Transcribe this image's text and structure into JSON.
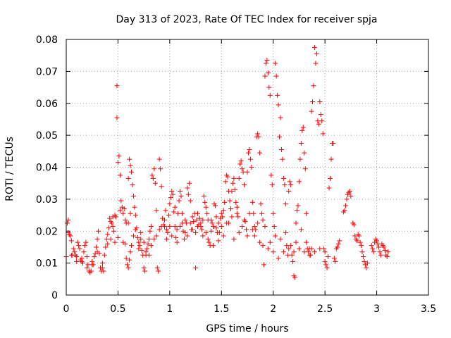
{
  "chart_data": {
    "type": "scatter",
    "title": "Day 313 of 2023, Rate Of TEC Index for receiver spja",
    "xlabel": "GPS time / hours",
    "ylabel": "ROTI / TECUs",
    "xlim": [
      0,
      3.5
    ],
    "ylim": [
      0,
      0.08
    ],
    "xticks": [
      0,
      0.5,
      1,
      1.5,
      2,
      2.5,
      3,
      3.5
    ],
    "xtick_labels": [
      "0",
      "0.5",
      "1",
      "1.5",
      "2",
      "2.5",
      "3",
      "3.5"
    ],
    "yticks": [
      0,
      0.01,
      0.02,
      0.03,
      0.04,
      0.05,
      0.06,
      0.07,
      0.08
    ],
    "ytick_labels": [
      "0",
      "0.01",
      "0.02",
      "0.03",
      "0.04",
      "0.05",
      "0.06",
      "0.07",
      "0.08"
    ],
    "grid": true,
    "marker": "plus",
    "series_color": "#ff0000",
    "points": [
      [
        0.0,
        0.012
      ],
      [
        0.01,
        0.0225
      ],
      [
        0.02,
        0.0235
      ],
      [
        0.02,
        0.0195
      ],
      [
        0.03,
        0.019
      ],
      [
        0.04,
        0.0185
      ],
      [
        0.05,
        0.017
      ],
      [
        0.06,
        0.0125
      ],
      [
        0.07,
        0.0145
      ],
      [
        0.08,
        0.0135
      ],
      [
        0.09,
        0.0125
      ],
      [
        0.1,
        0.012
      ],
      [
        0.11,
        0.0165
      ],
      [
        0.12,
        0.0155
      ],
      [
        0.13,
        0.0145
      ],
      [
        0.14,
        0.011
      ],
      [
        0.15,
        0.0105
      ],
      [
        0.16,
        0.01
      ],
      [
        0.17,
        0.0135
      ],
      [
        0.18,
        0.0155
      ],
      [
        0.19,
        0.0165
      ],
      [
        0.2,
        0.012
      ],
      [
        0.21,
        0.0095
      ],
      [
        0.22,
        0.0075
      ],
      [
        0.23,
        0.007
      ],
      [
        0.24,
        0.0075
      ],
      [
        0.25,
        0.0105
      ],
      [
        0.26,
        0.0095
      ],
      [
        0.27,
        0.012
      ],
      [
        0.28,
        0.013
      ],
      [
        0.29,
        0.015
      ],
      [
        0.3,
        0.0175
      ],
      [
        0.31,
        0.02
      ],
      [
        0.32,
        0.013
      ],
      [
        0.33,
        0.0085
      ],
      [
        0.34,
        0.0075
      ],
      [
        0.35,
        0.0085
      ],
      [
        0.36,
        0.0075
      ],
      [
        0.37,
        0.0125
      ],
      [
        0.38,
        0.015
      ],
      [
        0.39,
        0.0175
      ],
      [
        0.4,
        0.019
      ],
      [
        0.41,
        0.021
      ],
      [
        0.42,
        0.024
      ],
      [
        0.43,
        0.023
      ],
      [
        0.44,
        0.0225
      ],
      [
        0.45,
        0.0215
      ],
      [
        0.46,
        0.02
      ],
      [
        0.47,
        0.025
      ],
      [
        0.48,
        0.0245
      ],
      [
        0.49,
        0.0655
      ],
      [
        0.49,
        0.0555
      ],
      [
        0.5,
        0.0415
      ],
      [
        0.51,
        0.0435
      ],
      [
        0.52,
        0.0375
      ],
      [
        0.53,
        0.0295
      ],
      [
        0.54,
        0.0275
      ],
      [
        0.55,
        0.0255
      ],
      [
        0.56,
        0.027
      ],
      [
        0.57,
        0.016
      ],
      [
        0.58,
        0.0115
      ],
      [
        0.59,
        0.0095
      ],
      [
        0.6,
        0.0085
      ],
      [
        0.61,
        0.011
      ],
      [
        0.62,
        0.0135
      ],
      [
        0.63,
        0.0155
      ],
      [
        0.58,
        0.0225
      ],
      [
        0.6,
        0.0365
      ],
      [
        0.61,
        0.0425
      ],
      [
        0.62,
        0.0405
      ],
      [
        0.63,
        0.0385
      ],
      [
        0.64,
        0.0345
      ],
      [
        0.65,
        0.031
      ],
      [
        0.66,
        0.0275
      ],
      [
        0.67,
        0.025
      ],
      [
        0.68,
        0.021
      ],
      [
        0.69,
        0.018
      ],
      [
        0.7,
        0.0165
      ],
      [
        0.71,
        0.0155
      ],
      [
        0.72,
        0.0175
      ],
      [
        0.73,
        0.014
      ],
      [
        0.74,
        0.0125
      ],
      [
        0.75,
        0.0085
      ],
      [
        0.76,
        0.0075
      ],
      [
        0.77,
        0.0135
      ],
      [
        0.78,
        0.0145
      ],
      [
        0.79,
        0.016
      ],
      [
        0.8,
        0.0175
      ],
      [
        0.81,
        0.02
      ],
      [
        0.82,
        0.0215
      ],
      [
        0.83,
        0.0375
      ],
      [
        0.84,
        0.0365
      ],
      [
        0.85,
        0.0395
      ],
      [
        0.86,
        0.035
      ],
      [
        0.87,
        0.0265
      ],
      [
        0.88,
        0.0085
      ],
      [
        0.89,
        0.0075
      ],
      [
        0.9,
        0.0425
      ],
      [
        0.91,
        0.0395
      ],
      [
        0.92,
        0.034
      ],
      [
        0.93,
        0.024
      ],
      [
        0.94,
        0.022
      ],
      [
        0.95,
        0.0215
      ],
      [
        0.96,
        0.0265
      ],
      [
        0.97,
        0.0205
      ],
      [
        0.98,
        0.0195
      ],
      [
        0.99,
        0.025
      ],
      [
        1.0,
        0.0285
      ],
      [
        1.01,
        0.0305
      ],
      [
        1.02,
        0.0325
      ],
      [
        1.03,
        0.0315
      ],
      [
        1.04,
        0.026
      ],
      [
        1.05,
        0.0215
      ],
      [
        1.06,
        0.018
      ],
      [
        1.07,
        0.0165
      ],
      [
        1.08,
        0.0255
      ],
      [
        1.09,
        0.0295
      ],
      [
        1.1,
        0.0325
      ],
      [
        1.11,
        0.031
      ],
      [
        1.12,
        0.0255
      ],
      [
        1.13,
        0.02
      ],
      [
        1.14,
        0.0175
      ],
      [
        1.15,
        0.0195
      ],
      [
        1.16,
        0.0225
      ],
      [
        1.17,
        0.0335
      ],
      [
        1.18,
        0.0315
      ],
      [
        1.19,
        0.035
      ],
      [
        1.2,
        0.0295
      ],
      [
        1.21,
        0.0205
      ],
      [
        1.22,
        0.0205
      ],
      [
        1.23,
        0.023
      ],
      [
        1.24,
        0.0255
      ],
      [
        1.25,
        0.0085
      ],
      [
        1.26,
        0.0235
      ],
      [
        1.27,
        0.0215
      ],
      [
        1.28,
        0.022
      ],
      [
        1.29,
        0.024
      ],
      [
        1.3,
        0.0225
      ],
      [
        1.31,
        0.0205
      ],
      [
        1.32,
        0.0235
      ],
      [
        1.33,
        0.031
      ],
      [
        1.34,
        0.029
      ],
      [
        1.35,
        0.0275
      ],
      [
        1.36,
        0.0255
      ],
      [
        1.37,
        0.0175
      ],
      [
        1.38,
        0.0165
      ],
      [
        1.39,
        0.0155
      ],
      [
        1.4,
        0.02
      ],
      [
        1.41,
        0.0225
      ],
      [
        1.42,
        0.0215
      ],
      [
        1.43,
        0.0285
      ],
      [
        1.44,
        0.028
      ],
      [
        1.45,
        0.021
      ],
      [
        1.46,
        0.0195
      ],
      [
        1.47,
        0.017
      ],
      [
        1.48,
        0.0195
      ],
      [
        1.49,
        0.024
      ],
      [
        1.5,
        0.0215
      ],
      [
        1.51,
        0.0245
      ],
      [
        1.52,
        0.0265
      ],
      [
        1.53,
        0.029
      ],
      [
        1.54,
        0.0355
      ],
      [
        1.55,
        0.0375
      ],
      [
        1.56,
        0.037
      ],
      [
        1.57,
        0.0325
      ],
      [
        1.58,
        0.0295
      ],
      [
        1.59,
        0.027
      ],
      [
        1.6,
        0.0325
      ],
      [
        1.61,
        0.035
      ],
      [
        1.62,
        0.0365
      ],
      [
        1.63,
        0.033
      ],
      [
        1.64,
        0.029
      ],
      [
        1.65,
        0.0275
      ],
      [
        1.66,
        0.0245
      ],
      [
        1.67,
        0.0365
      ],
      [
        1.68,
        0.041
      ],
      [
        1.69,
        0.042
      ],
      [
        1.7,
        0.0395
      ],
      [
        1.71,
        0.0385
      ],
      [
        1.72,
        0.0345
      ],
      [
        1.73,
        0.023
      ],
      [
        1.74,
        0.0205
      ],
      [
        1.75,
        0.0385
      ],
      [
        1.76,
        0.0445
      ],
      [
        1.77,
        0.0455
      ],
      [
        1.78,
        0.0425
      ],
      [
        1.79,
        0.04
      ],
      [
        1.8,
        0.029
      ],
      [
        1.81,
        0.0255
      ],
      [
        1.82,
        0.0215
      ],
      [
        1.83,
        0.0205
      ],
      [
        1.84,
        0.0495
      ],
      [
        1.85,
        0.0505
      ],
      [
        1.86,
        0.0495
      ],
      [
        1.87,
        0.0445
      ],
      [
        1.88,
        0.0285
      ],
      [
        1.89,
        0.0255
      ],
      [
        1.9,
        0.0235
      ],
      [
        1.91,
        0.0095
      ],
      [
        1.92,
        0.0685
      ],
      [
        1.93,
        0.0725
      ],
      [
        1.94,
        0.0735
      ],
      [
        1.95,
        0.0695
      ],
      [
        1.96,
        0.065
      ],
      [
        1.97,
        0.0625
      ],
      [
        1.98,
        0.0375
      ],
      [
        1.99,
        0.0345
      ],
      [
        2.0,
        0.0255
      ],
      [
        2.01,
        0.0215
      ],
      [
        2.02,
        0.0725
      ],
      [
        2.03,
        0.0685
      ],
      [
        2.04,
        0.0625
      ],
      [
        2.05,
        0.0595
      ],
      [
        2.06,
        0.0495
      ],
      [
        2.07,
        0.0555
      ],
      [
        2.08,
        0.0455
      ],
      [
        2.09,
        0.0425
      ],
      [
        2.1,
        0.0365
      ],
      [
        2.11,
        0.0345
      ],
      [
        2.12,
        0.0285
      ],
      [
        2.13,
        0.0155
      ],
      [
        2.14,
        0.0125
      ],
      [
        2.15,
        0.0325
      ],
      [
        2.16,
        0.0355
      ],
      [
        2.17,
        0.0345
      ],
      [
        2.18,
        0.0125
      ],
      [
        2.19,
        0.0105
      ],
      [
        2.2,
        0.006
      ],
      [
        2.21,
        0.0055
      ],
      [
        2.22,
        0.0225
      ],
      [
        2.23,
        0.0265
      ],
      [
        2.24,
        0.028
      ],
      [
        2.25,
        0.0355
      ],
      [
        2.26,
        0.0425
      ],
      [
        2.27,
        0.0475
      ],
      [
        2.28,
        0.0515
      ],
      [
        2.29,
        0.0525
      ],
      [
        2.3,
        0.0445
      ],
      [
        2.31,
        0.0395
      ],
      [
        2.32,
        0.0255
      ],
      [
        2.33,
        0.0145
      ],
      [
        2.34,
        0.0135
      ],
      [
        2.35,
        0.0125
      ],
      [
        2.36,
        0.0125
      ],
      [
        2.37,
        0.0575
      ],
      [
        2.38,
        0.0605
      ],
      [
        2.39,
        0.0655
      ],
      [
        2.4,
        0.0775
      ],
      [
        2.41,
        0.0725
      ],
      [
        2.42,
        0.0755
      ],
      [
        2.43,
        0.0545
      ],
      [
        2.44,
        0.0535
      ],
      [
        2.45,
        0.0605
      ],
      [
        2.46,
        0.0565
      ],
      [
        2.47,
        0.0545
      ],
      [
        2.48,
        0.0505
      ],
      [
        2.49,
        0.0145
      ],
      [
        2.5,
        0.0105
      ],
      [
        2.51,
        0.0095
      ],
      [
        2.52,
        0.0085
      ],
      [
        2.53,
        0.012
      ],
      [
        2.54,
        0.0335
      ],
      [
        2.55,
        0.0365
      ],
      [
        2.56,
        0.0425
      ],
      [
        2.57,
        0.0475
      ],
      [
        2.58,
        0.0475
      ],
      [
        2.59,
        0.0115
      ],
      [
        2.6,
        0.0105
      ],
      [
        2.61,
        0.0145
      ],
      [
        2.62,
        0.015
      ],
      [
        2.63,
        0.016
      ],
      [
        2.64,
        0.017
      ],
      [
        2.68,
        0.026
      ],
      [
        2.69,
        0.0265
      ],
      [
        2.7,
        0.028
      ],
      [
        2.71,
        0.03
      ],
      [
        2.72,
        0.0315
      ],
      [
        2.73,
        0.032
      ],
      [
        2.74,
        0.0325
      ],
      [
        2.75,
        0.031
      ],
      [
        2.77,
        0.0225
      ],
      [
        2.78,
        0.022
      ],
      [
        2.79,
        0.0185
      ],
      [
        2.8,
        0.0175
      ],
      [
        2.81,
        0.017
      ],
      [
        2.82,
        0.019
      ],
      [
        2.83,
        0.0185
      ],
      [
        2.84,
        0.0165
      ],
      [
        2.85,
        0.0155
      ],
      [
        2.86,
        0.0135
      ],
      [
        2.87,
        0.012
      ],
      [
        2.88,
        0.0105
      ],
      [
        2.89,
        0.0095
      ],
      [
        2.9,
        0.0085
      ],
      [
        2.91,
        0.01
      ],
      [
        2.95,
        0.0155
      ],
      [
        2.96,
        0.0145
      ],
      [
        2.97,
        0.0135
      ],
      [
        2.98,
        0.0165
      ],
      [
        2.99,
        0.0175
      ],
      [
        3.0,
        0.017
      ],
      [
        3.01,
        0.016
      ],
      [
        3.02,
        0.015
      ],
      [
        3.03,
        0.0135
      ],
      [
        3.04,
        0.0125
      ],
      [
        3.05,
        0.016
      ],
      [
        3.06,
        0.0155
      ],
      [
        3.07,
        0.015
      ],
      [
        3.08,
        0.014
      ],
      [
        3.09,
        0.0125
      ],
      [
        3.1,
        0.012
      ],
      [
        3.11,
        0.0135
      ],
      [
        0.05,
        0.0125
      ],
      [
        0.1,
        0.0105
      ],
      [
        0.15,
        0.0115
      ],
      [
        0.2,
        0.0085
      ],
      [
        0.25,
        0.0095
      ],
      [
        0.3,
        0.0135
      ],
      [
        0.35,
        0.01
      ],
      [
        0.4,
        0.016
      ],
      [
        0.45,
        0.0245
      ],
      [
        0.5,
        0.018
      ],
      [
        0.55,
        0.0165
      ],
      [
        0.6,
        0.0225
      ],
      [
        0.65,
        0.0185
      ],
      [
        0.7,
        0.0145
      ],
      [
        0.75,
        0.0165
      ],
      [
        0.8,
        0.0125
      ],
      [
        0.85,
        0.0175
      ],
      [
        0.9,
        0.0205
      ],
      [
        0.95,
        0.0235
      ],
      [
        1.0,
        0.0215
      ],
      [
        1.05,
        0.0275
      ],
      [
        1.1,
        0.0215
      ],
      [
        1.15,
        0.0235
      ],
      [
        1.2,
        0.0225
      ],
      [
        1.25,
        0.0195
      ],
      [
        1.3,
        0.0215
      ],
      [
        1.35,
        0.0195
      ],
      [
        1.4,
        0.0235
      ],
      [
        1.45,
        0.0245
      ],
      [
        1.5,
        0.0255
      ],
      [
        1.55,
        0.0225
      ],
      [
        1.6,
        0.0245
      ],
      [
        1.65,
        0.0255
      ],
      [
        1.7,
        0.0215
      ],
      [
        1.75,
        0.0185
      ],
      [
        1.8,
        0.0205
      ],
      [
        1.85,
        0.0225
      ],
      [
        1.9,
        0.0155
      ],
      [
        1.95,
        0.0145
      ],
      [
        2.0,
        0.0135
      ],
      [
        2.05,
        0.0115
      ],
      [
        2.1,
        0.0135
      ],
      [
        2.15,
        0.0145
      ],
      [
        2.2,
        0.0135
      ],
      [
        2.25,
        0.0145
      ],
      [
        2.3,
        0.0135
      ],
      [
        2.35,
        0.0145
      ],
      [
        2.4,
        0.0135
      ],
      [
        2.45,
        0.0145
      ],
      [
        2.5,
        0.0135
      ],
      [
        0.43,
        0.0175
      ],
      [
        0.47,
        0.0165
      ],
      [
        0.52,
        0.0265
      ],
      [
        0.57,
        0.0235
      ],
      [
        0.62,
        0.0255
      ],
      [
        0.67,
        0.0205
      ],
      [
        0.72,
        0.0195
      ],
      [
        0.77,
        0.0125
      ],
      [
        0.82,
        0.0155
      ],
      [
        0.87,
        0.0185
      ],
      [
        0.92,
        0.0215
      ],
      [
        0.97,
        0.0175
      ],
      [
        1.02,
        0.0185
      ],
      [
        1.07,
        0.0205
      ],
      [
        1.12,
        0.0225
      ],
      [
        1.17,
        0.0185
      ],
      [
        1.22,
        0.0245
      ],
      [
        1.27,
        0.0255
      ],
      [
        1.32,
        0.0185
      ],
      [
        1.37,
        0.0235
      ],
      [
        1.42,
        0.0155
      ],
      [
        1.47,
        0.0225
      ],
      [
        1.52,
        0.0185
      ],
      [
        1.57,
        0.0225
      ],
      [
        1.62,
        0.0175
      ],
      [
        1.67,
        0.0195
      ],
      [
        1.72,
        0.0235
      ],
      [
        1.77,
        0.0255
      ],
      [
        1.82,
        0.0185
      ],
      [
        1.87,
        0.0165
      ],
      [
        1.92,
        0.0215
      ],
      [
        1.97,
        0.0165
      ],
      [
        2.02,
        0.0185
      ],
      [
        2.07,
        0.0175
      ],
      [
        2.12,
        0.0195
      ],
      [
        2.17,
        0.0155
      ],
      [
        2.22,
        0.0165
      ],
      [
        2.27,
        0.0205
      ],
      [
        2.32,
        0.0165
      ],
      [
        2.37,
        0.0145
      ]
    ]
  }
}
